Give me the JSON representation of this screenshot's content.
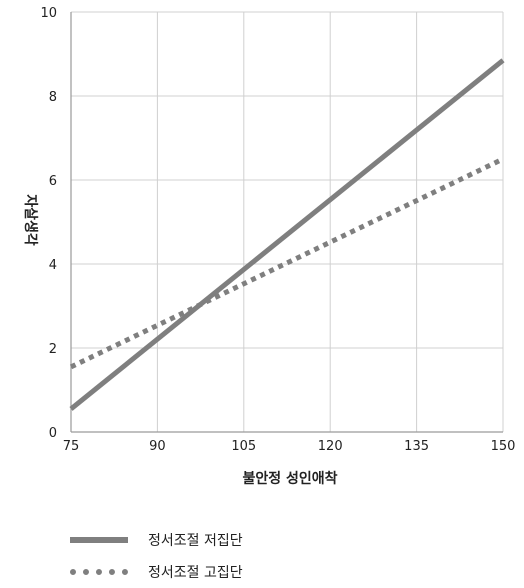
{
  "chart_data": {
    "type": "line",
    "xlabel": "불안정 성인애착",
    "ylabel": "자살생각",
    "xlim": [
      75,
      150
    ],
    "ylim": [
      0,
      10
    ],
    "xticks": [
      75,
      90,
      105,
      120,
      135,
      150
    ],
    "yticks": [
      0,
      2,
      4,
      6,
      8,
      10
    ],
    "grid": true,
    "legend_position": "bottom-left",
    "series": [
      {
        "name": "정서조절 저집단",
        "style": "solid",
        "color": "#7f7f7f",
        "x": [
          75,
          150
        ],
        "y": [
          0.55,
          8.85
        ]
      },
      {
        "name": "정서조절 고집단",
        "style": "dotted",
        "color": "#7f7f7f",
        "x": [
          75,
          150
        ],
        "y": [
          1.55,
          6.5
        ]
      }
    ]
  }
}
